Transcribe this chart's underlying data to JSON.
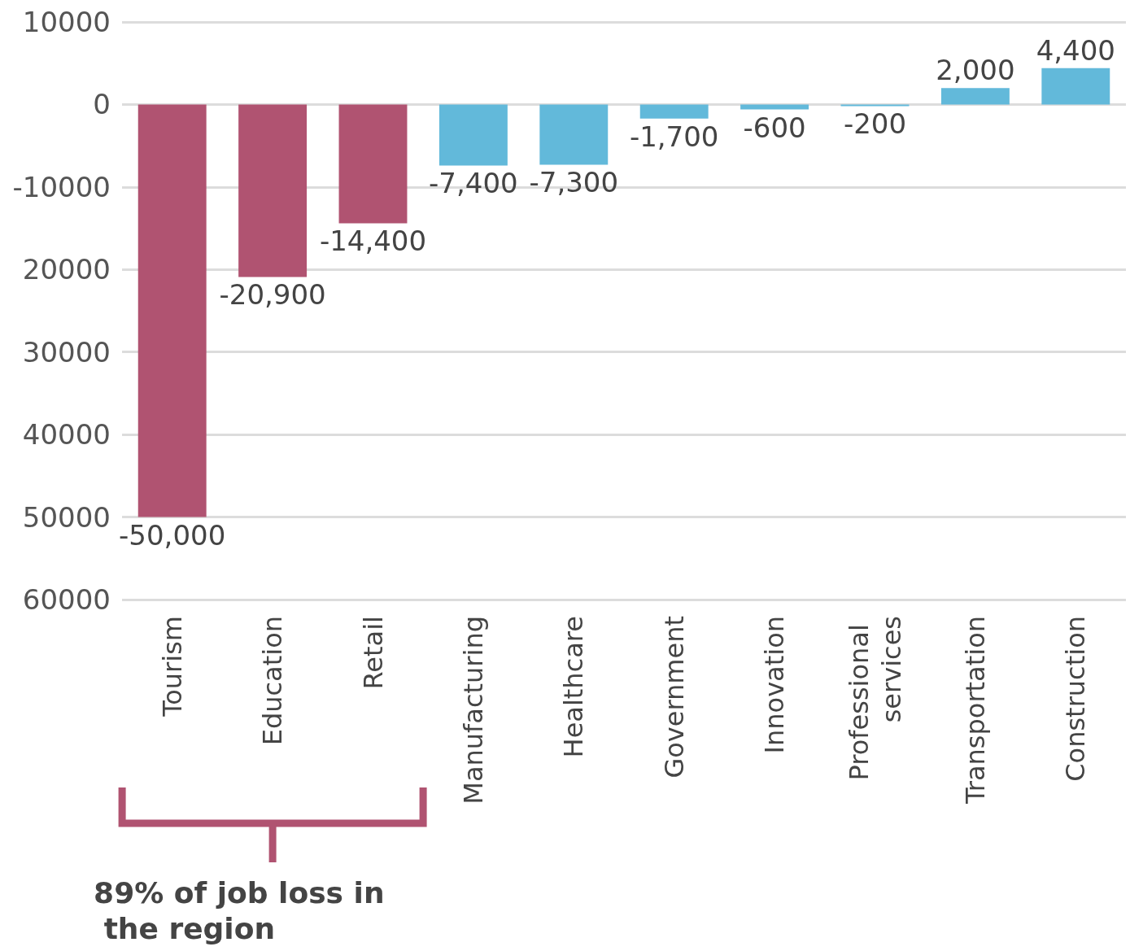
{
  "chart_data": {
    "type": "bar",
    "categories": [
      "Tourism",
      "Education",
      "Retail",
      "Manufacturing",
      "Healthcare",
      "Government",
      "Innovation",
      "Professional services",
      "Transportation",
      "Construction"
    ],
    "values": [
      -50000,
      -20900,
      -14400,
      -7400,
      -7300,
      -1700,
      -600,
      -200,
      2000,
      4400
    ],
    "value_labels": [
      "-50,000",
      "-20,900",
      "-14,400",
      "-7,400",
      "-7,300",
      "-1,700",
      "-600",
      "-200",
      "2,000",
      "4,400"
    ],
    "colors": [
      "#b05371",
      "#b05371",
      "#b05371",
      "#62b9da",
      "#62b9da",
      "#62b9da",
      "#62b9da",
      "#62b9da",
      "#62b9da",
      "#62b9da"
    ],
    "ylim": [
      -60000,
      10000
    ],
    "yticks": [
      10000,
      0,
      -10000,
      {
        "value": -20000,
        "label": "20000"
      },
      {
        "value": -30000,
        "label": "30000"
      },
      {
        "value": -40000,
        "label": "40000"
      },
      {
        "value": -50000,
        "label": "50000"
      },
      {
        "value": -60000,
        "label": "60000"
      }
    ],
    "grid": "y",
    "annotations": [
      "89% of job loss in the region"
    ]
  }
}
